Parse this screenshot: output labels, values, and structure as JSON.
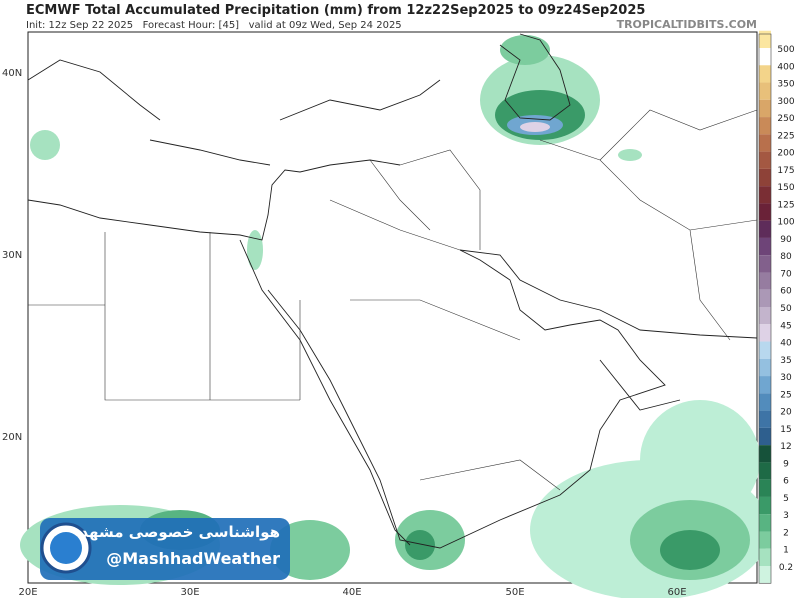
{
  "header": {
    "title": "ECMWF Total Accumulated Precipitation (mm) from 12z22Sep2025 to 09z24Sep2025",
    "subtitle": "Init: 12z Sep 22 2025   Forecast Hour: [45]   valid at 09z Wed, Sep 24 2025",
    "source": "TROPICALTIDBITS.COM"
  },
  "map": {
    "lat_labels": [
      "40N",
      "30N",
      "20N"
    ],
    "lon_labels": [
      "20E",
      "30E",
      "40E",
      "50E",
      "60E"
    ]
  },
  "colorbar": {
    "labels": [
      500,
      400,
      350,
      300,
      250,
      225,
      200,
      175,
      150,
      125,
      100,
      90,
      80,
      70,
      60,
      50,
      45,
      40,
      35,
      30,
      25,
      20,
      15,
      12,
      9,
      6,
      5,
      3,
      2,
      1,
      0.2
    ],
    "colors": [
      "#fbe6a0",
      "#f3d48a",
      "#e8c07a",
      "#d9a668",
      "#c98a58",
      "#b8704c",
      "#a45842",
      "#8e4238",
      "#7a2e34",
      "#6a2238",
      "#5e2c5a",
      "#6e4478",
      "#82608c",
      "#967ca0",
      "#ab98b6",
      "#c3b4cc",
      "#ded2e6",
      "#b8d8ee",
      "#94c0e0",
      "#70a6d0",
      "#528cbc",
      "#3e74a6",
      "#2e5f8e",
      "#16523a",
      "#1e6a46",
      "#2a8456",
      "#3a9a68",
      "#58b482",
      "#7ccc9e",
      "#a6e2c0",
      "#cff3e0"
    ]
  },
  "watermark": {
    "name": "هواشناسی خصوصی مشهد",
    "handle": "@MashhadWeather"
  }
}
